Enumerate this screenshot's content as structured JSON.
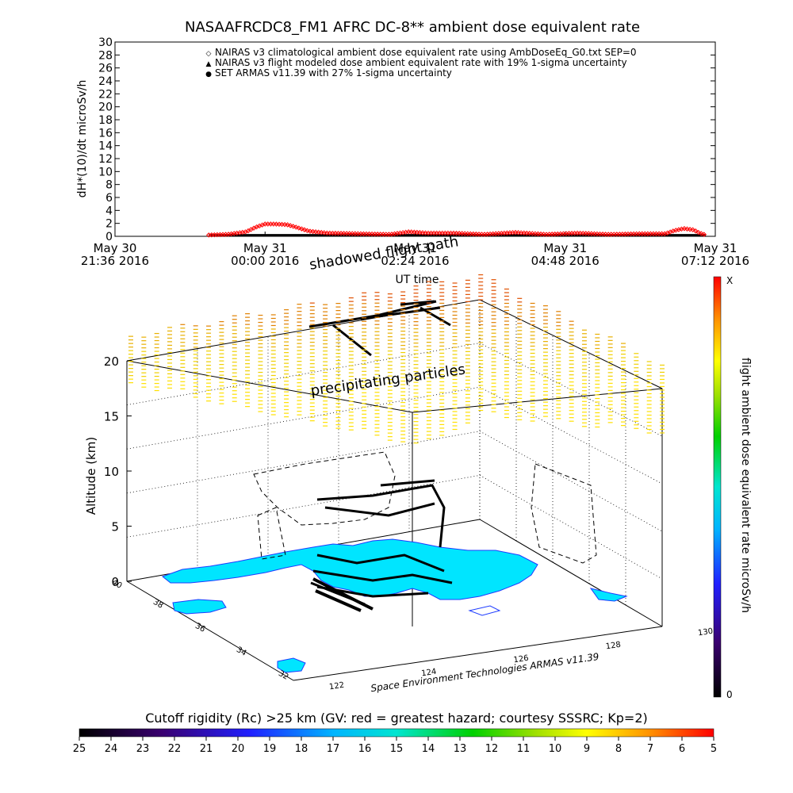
{
  "title": "NASAAFRCDC8_FM1 AFRC DC-8** ambient dose equivalent rate",
  "colors": {
    "nairas_climatological": "#ff0000",
    "nairas_flight": "#000000",
    "set_armas": "#0000ff",
    "land": "#00e5ff",
    "coast": "#1e3cff"
  },
  "chart_data": [
    {
      "type": "line",
      "panel": "dose_rate_timeseries",
      "ylabel": "dH*(10)/dt microSv/h",
      "xlabel": "UT time",
      "ylim": [
        0,
        30
      ],
      "y_ticks": [
        0,
        2,
        4,
        6,
        8,
        10,
        12,
        14,
        16,
        18,
        20,
        22,
        24,
        26,
        28,
        30
      ],
      "x_tick_labels": [
        {
          "line1": "May 30",
          "line2": "21:36 2016"
        },
        {
          "line1": "May 31",
          "line2": "00:00 2016"
        },
        {
          "line1": "May 31",
          "line2": "02:24 2016"
        },
        {
          "line1": "May 31",
          "line2": "04:48 2016"
        },
        {
          "line1": "May 31",
          "line2": "07:12 2016"
        }
      ],
      "x_tick_hours": [
        -2.4,
        0,
        2.4,
        4.8,
        7.2
      ],
      "x_range_hours": [
        -2.4,
        7.2
      ],
      "legend": [
        {
          "symbol": "◇",
          "color": "#ff0000",
          "text": "NAIRAS v3 climatological ambient dose equivalent rate using AmbDoseEq_G0.txt SEP=0"
        },
        {
          "symbol": "▲",
          "color": "#000000",
          "text": "NAIRAS v3 flight modeled dose ambient equivalent rate with 19% 1-sigma uncertainty"
        },
        {
          "symbol": "●",
          "color": "#0000ff",
          "text": "SET ARMAS v11.39 with 27% 1-sigma uncertainty"
        }
      ],
      "series": [
        {
          "name": "NAIRAS v3 climatological ambient dose equivalent rate using AmbDoseEq_G0.txt SEP=0",
          "color": "#ff0000",
          "x_hours": [
            -0.9,
            -0.6,
            -0.3,
            -0.15,
            0.0,
            0.15,
            0.35,
            0.5,
            0.7,
            1.0,
            1.5,
            2.0,
            2.3,
            2.6,
            3.0,
            3.5,
            4.0,
            4.5,
            5.0,
            5.5,
            6.0,
            6.4,
            6.55,
            6.7,
            6.85,
            6.95,
            7.05
          ],
          "values": [
            0.2,
            0.3,
            0.7,
            1.4,
            1.9,
            1.9,
            1.8,
            1.4,
            0.8,
            0.5,
            0.4,
            0.3,
            0.7,
            0.5,
            0.5,
            0.3,
            0.6,
            0.3,
            0.5,
            0.3,
            0.4,
            0.4,
            0.9,
            1.2,
            1.0,
            0.5,
            0.2
          ]
        },
        {
          "name": "NAIRAS v3 flight modeled dose ambient equivalent rate with 19% 1-sigma uncertainty",
          "color": "#000000",
          "x_hours": [
            -0.9,
            7.05
          ],
          "values": [
            0.05,
            0.05
          ]
        }
      ]
    },
    {
      "type": "scatter",
      "panel": "flight_path_3d",
      "zlabel": "Altitude (km)",
      "z_ticks": [
        0,
        5,
        10,
        15,
        20
      ],
      "zlim": [
        0,
        20
      ],
      "lat_ticks": [
        32,
        34,
        36,
        38,
        40
      ],
      "lon_ticks": [
        122,
        124,
        126,
        128,
        130
      ],
      "lat_range": [
        31,
        40
      ],
      "lon_range": [
        121,
        130
      ],
      "annotations": [
        "shadowed flight path",
        "precipitating particles"
      ],
      "footer": "Space Environment Technologies ARMAS v11.39",
      "colorbar": {
        "label": "flight ambient dose equivalent rate microSv/h",
        "top_label": "X",
        "bottom_label": "0"
      }
    },
    {
      "type": "heatmap",
      "panel": "cutoff_rigidity_colorbar",
      "title": "Cutoff rigidity (Rc) >25 km (GV: red = greatest hazard; courtesy SSSRC; Kp=2)",
      "tick_labels": [
        25,
        24,
        23,
        22,
        21,
        20,
        19,
        18,
        17,
        16,
        15,
        14,
        13,
        12,
        11,
        10,
        9,
        8,
        7,
        6,
        5
      ]
    }
  ]
}
